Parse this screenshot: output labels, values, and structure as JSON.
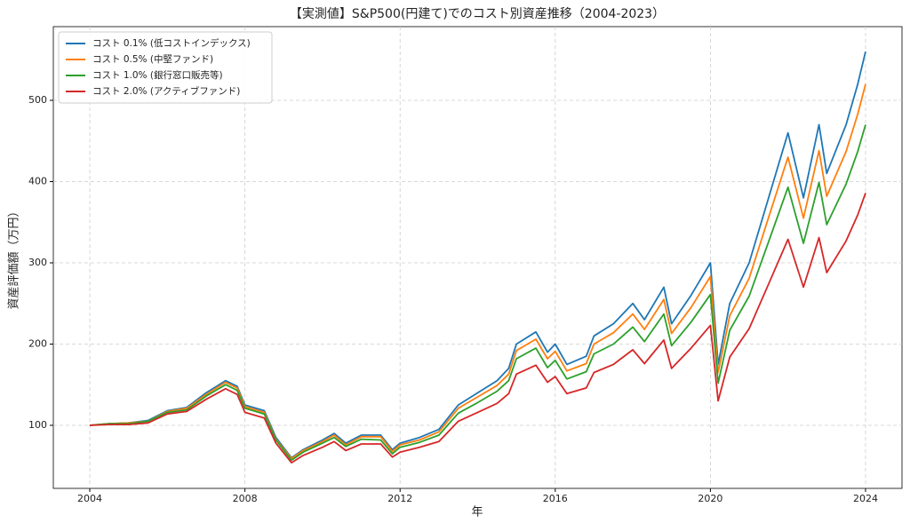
{
  "chart_data": {
    "type": "line",
    "title": "【実測値】S&P500(円建て)でのコスト別資産推移（2004-2023）",
    "x_label": "年",
    "y_label": "資産評価額（万円）",
    "x": [
      2004,
      2004.5,
      2005,
      2005.5,
      2006,
      2006.5,
      2007,
      2007.5,
      2007.8,
      2008,
      2008.5,
      2008.8,
      2009.2,
      2009.5,
      2010,
      2010.3,
      2010.6,
      2011,
      2011.5,
      2011.8,
      2012,
      2012.5,
      2013,
      2013.5,
      2014,
      2014.5,
      2014.8,
      2015,
      2015.5,
      2015.8,
      2016,
      2016.3,
      2016.8,
      2017,
      2017.5,
      2018,
      2018.3,
      2018.8,
      2019,
      2019.5,
      2020,
      2020.2,
      2020.5,
      2021,
      2021.5,
      2022,
      2022.4,
      2022.8,
      2023,
      2023.5,
      2023.8,
      2024
    ],
    "series": [
      {
        "name": "コスト 0.1% (低コストインデックス)",
        "color": "#1f77b4",
        "values": [
          100,
          102,
          103,
          106,
          118,
          122,
          140,
          155,
          148,
          125,
          118,
          85,
          60,
          70,
          82,
          90,
          78,
          88,
          88,
          70,
          78,
          85,
          95,
          125,
          140,
          155,
          170,
          200,
          215,
          190,
          200,
          175,
          185,
          210,
          225,
          250,
          230,
          270,
          225,
          260,
          300,
          175,
          250,
          300,
          380,
          460,
          380,
          470,
          410,
          470,
          520,
          560
        ]
      },
      {
        "name": "コスト 0.5% (中堅ファンド)",
        "color": "#ff7f0e",
        "values": [
          100,
          102,
          103,
          105,
          117,
          121,
          138,
          153,
          146,
          123,
          116,
          83,
          59,
          69,
          80,
          88,
          76,
          86,
          86,
          68,
          76,
          82,
          92,
          121,
          135,
          149,
          163,
          192,
          206,
          182,
          191,
          167,
          176,
          200,
          214,
          237,
          218,
          255,
          213,
          245,
          283,
          165,
          235,
          281,
          356,
          430,
          355,
          438,
          382,
          437,
          483,
          520
        ]
      },
      {
        "name": "コスト 1.0% (銀行窓口販売等)",
        "color": "#2ca02c",
        "values": [
          100,
          102,
          102,
          105,
          116,
          119,
          136,
          150,
          143,
          121,
          114,
          82,
          57,
          67,
          78,
          85,
          74,
          83,
          82,
          65,
          73,
          79,
          88,
          115,
          128,
          142,
          155,
          182,
          195,
          171,
          180,
          157,
          166,
          188,
          200,
          221,
          203,
          237,
          198,
          227,
          261,
          152,
          217,
          259,
          326,
          393,
          324,
          399,
          347,
          397,
          437,
          470
        ]
      },
      {
        "name": "コスト 2.0% (アクティブファンド)",
        "color": "#d62728",
        "values": [
          100,
          101,
          101,
          103,
          114,
          117,
          132,
          145,
          138,
          116,
          109,
          78,
          54,
          63,
          73,
          80,
          69,
          77,
          77,
          61,
          67,
          73,
          80,
          105,
          116,
          127,
          139,
          163,
          174,
          153,
          160,
          139,
          146,
          165,
          175,
          193,
          176,
          205,
          170,
          195,
          223,
          130,
          184,
          219,
          274,
          329,
          270,
          331,
          288,
          327,
          359,
          386
        ]
      }
    ],
    "xlim": [
      2003.06,
      2024.94
    ],
    "ylim": [
      22.4,
      590.7
    ],
    "xticks": [
      2004,
      2008,
      2012,
      2016,
      2020,
      2024
    ],
    "yticks": [
      100,
      200,
      300,
      400,
      500
    ],
    "grid": true,
    "legend": "upper-left"
  }
}
